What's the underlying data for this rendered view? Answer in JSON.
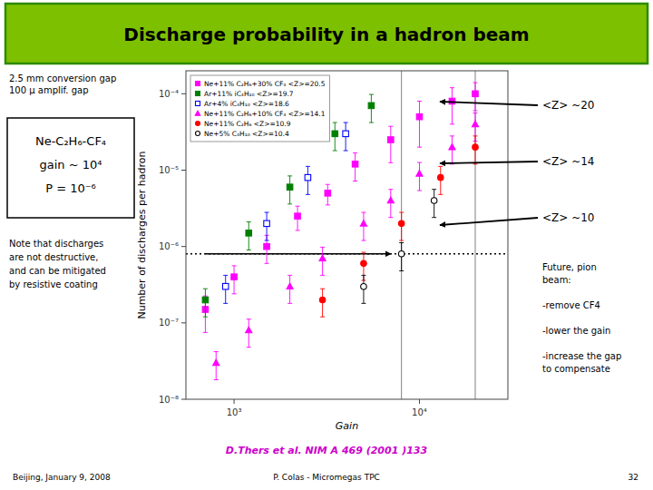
{
  "chart_data": {
    "type": "scatter",
    "title": "Discharge probability in a hadron beam",
    "x_label": "Gain",
    "y_label": "Number of discharges per hadron",
    "log": true,
    "xlim": [
      550,
      30000
    ],
    "ylim": [
      1e-08,
      0.0002
    ],
    "xticks": [
      {
        "value": 1000,
        "label": "10³"
      },
      {
        "value": 10000,
        "label": "10⁴"
      }
    ],
    "yticks": [
      {
        "value": 1e-08,
        "label": "10⁻⁸"
      },
      {
        "value": 1e-07,
        "label": "10⁻⁷"
      },
      {
        "value": 1e-06,
        "label": "10⁻⁶"
      },
      {
        "value": 1e-05,
        "label": "10⁻⁵"
      },
      {
        "value": 0.0001,
        "label": "10⁻⁴"
      }
    ],
    "grid": false,
    "legend": "upper left",
    "series": [
      {
        "name": "Ne+11% C₂H₆+30% CF₄ <Z>=20.5",
        "color": "magenta",
        "marker": "square",
        "x": [
          700,
          1000,
          1500,
          2200,
          3200,
          4500,
          7000,
          10000,
          15000,
          20000
        ],
        "values": [
          1.5e-07,
          4e-07,
          1e-06,
          2.5e-06,
          5e-06,
          1.2e-05,
          2.5e-05,
          5e-05,
          8e-05,
          0.0001
        ],
        "errors": [
          7.5e-08,
          1.6e-07,
          4e-07,
          8.75e-07,
          1.5e-06,
          4.8e-06,
          1.25e-05,
          3e-05,
          4e-05,
          4e-05
        ]
      },
      {
        "name": "Ar+11% iC₄H₁₀ <Z>=19.7",
        "color": "green",
        "marker": "square",
        "x": [
          700,
          1200,
          2000,
          3500,
          5500
        ],
        "values": [
          2e-07,
          1.5e-06,
          6e-06,
          3e-05,
          7e-05
        ],
        "errors": [
          8e-08,
          6e-07,
          2.4e-06,
          1.2e-05,
          2.8e-05
        ]
      },
      {
        "name": "Ar+4% iC₄H₁₀ <Z>=18.6",
        "color": "blue",
        "marker": "open-square",
        "x": [
          900,
          1500,
          2500,
          4000
        ],
        "values": [
          3e-07,
          2e-06,
          8e-06,
          3e-05
        ],
        "errors": [
          1.2e-07,
          8e-07,
          3.2e-06,
          1.2e-05
        ]
      },
      {
        "name": "Ne+11% C₂H₆+10% CF₄ <Z>=14.1",
        "color": "magenta",
        "marker": "triangle",
        "x": [
          800,
          1200,
          2000,
          3000,
          5000,
          7000,
          10000,
          15000,
          20000
        ],
        "values": [
          3e-08,
          8e-08,
          3e-07,
          7e-07,
          2e-06,
          4e-06,
          9e-06,
          2e-05,
          4e-05
        ],
        "errors": [
          1.2e-08,
          3.2e-08,
          1.2e-07,
          2.8e-07,
          8e-07,
          1.6e-06,
          3.6e-06,
          8e-06,
          1.6e-05
        ]
      },
      {
        "name": "Ne+11% C₂H₆ <Z>=10.9",
        "color": "red",
        "marker": "circle",
        "x": [
          3000,
          5000,
          8000,
          13000,
          20000
        ],
        "values": [
          2e-07,
          6e-07,
          2e-06,
          8e-06,
          2e-05
        ],
        "errors": [
          8e-08,
          2.4e-07,
          8e-07,
          3.2e-06,
          8e-06
        ]
      },
      {
        "name": "Ne+5% C₄H₁₀ <Z>=10.4",
        "color": "black",
        "marker": "open-circle",
        "x": [
          5000,
          8000,
          12000
        ],
        "values": [
          3e-07,
          8e-07,
          4e-06
        ],
        "errors": [
          1.2e-07,
          3.2e-07,
          1.6e-06
        ]
      }
    ],
    "reference_lines": {
      "x": [
        8000,
        20000
      ],
      "x_color": "gray",
      "y": 8e-07,
      "line_style": "dotted",
      "arrow_x": [
        700,
        7000
      ]
    },
    "z_annotations": [
      "<Z> ~20",
      "<Z> ~14",
      "<Z> ~10"
    ],
    "left_top_text": "2.5 mm conversion gap\n100 µ amplif. gap",
    "box_text": "Ne-C₂H₆-CF₄\ngain ~ 10⁴\nP = 10⁻⁶",
    "note_text": "Note that discharges\nare not destructive,\nand can be mitigated\nby resistive coating",
    "future_pion_text": "Future, pion\nbeam:\n\n-remove CF4\n\n-lower the gain\n\n-increase the gap\nto compensate",
    "reference_text": "D.Thers et al. NIM A 469 (2001 )133",
    "footer_left": "Beijing, January 9, 2008",
    "footer_center": "P. Colas - Micromegas TPC",
    "footer_right": "32",
    "title_bg_color": "#7dc000",
    "title_border_color": "#2d8a00",
    "background_color": "#ffffff",
    "reference_text_color": "#cc00cc"
  }
}
